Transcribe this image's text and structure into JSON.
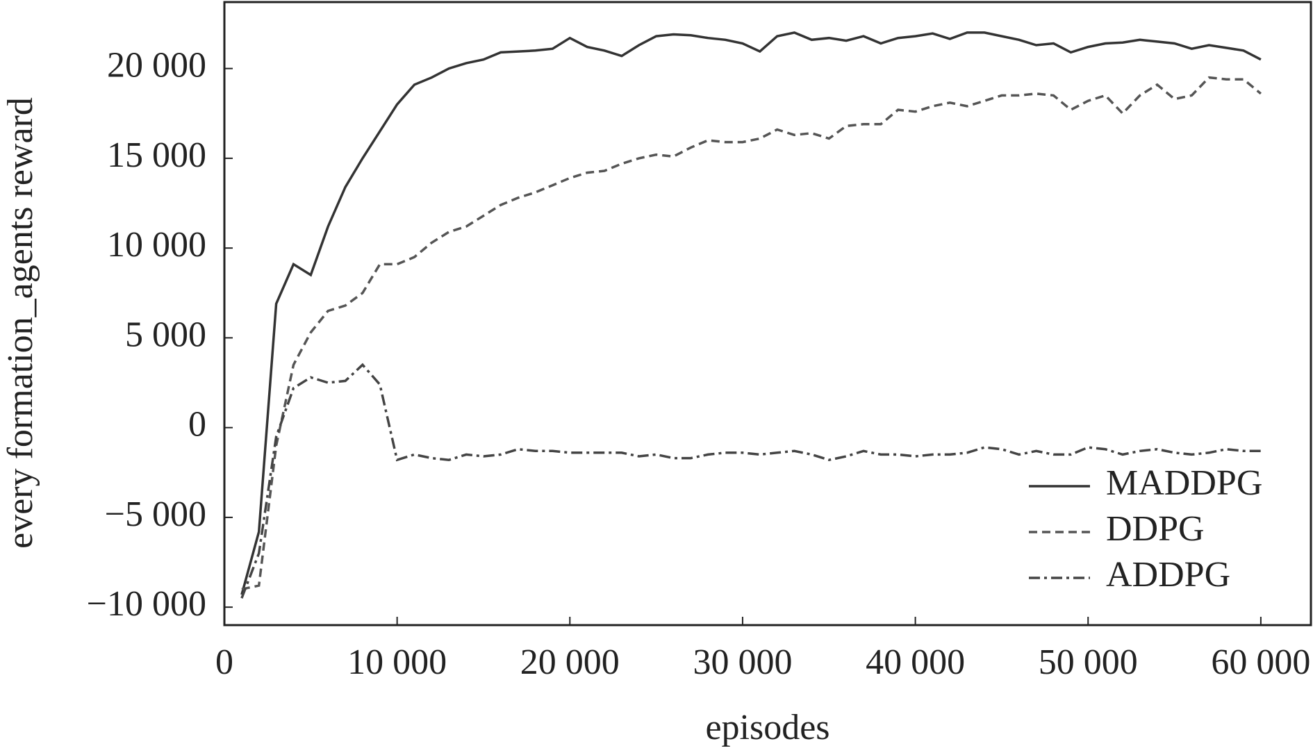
{
  "chart_data": {
    "type": "line",
    "x_label": "episodes",
    "y_label": "every formation_agents reward",
    "x": [
      1000,
      2000,
      3000,
      4000,
      5000,
      6000,
      7000,
      8000,
      9000,
      10000,
      11000,
      12000,
      13000,
      14000,
      15000,
      16000,
      17000,
      18000,
      19000,
      20000,
      21000,
      22000,
      23000,
      24000,
      25000,
      26000,
      27000,
      28000,
      29000,
      30000,
      31000,
      32000,
      33000,
      34000,
      35000,
      36000,
      37000,
      38000,
      39000,
      40000,
      41000,
      42000,
      43000,
      44000,
      45000,
      46000,
      47000,
      48000,
      49000,
      50000,
      51000,
      52000,
      53000,
      54000,
      55000,
      56000,
      57000,
      58000,
      59000,
      60000
    ],
    "series": [
      {
        "name": "MADDPG",
        "color": "#333333",
        "linestyle": "solid",
        "values": [
          -9300,
          -5800,
          6900,
          9100,
          8500,
          11200,
          13400,
          15000,
          16500,
          18000,
          19100,
          19500,
          20000,
          20300,
          20500,
          20900,
          20950,
          21000,
          21100,
          21700,
          21200,
          21000,
          20700,
          21300,
          21800,
          21900,
          21850,
          21700,
          21600,
          21400,
          20950,
          21800,
          22000,
          21600,
          21700,
          21550,
          21800,
          21400,
          21700,
          21800,
          21950,
          21650,
          22000,
          22000,
          21800,
          21600,
          21300,
          21400,
          20900,
          21200,
          21400,
          21450,
          21600,
          21500,
          21400,
          21100,
          21300,
          21150,
          21000,
          20500
        ]
      },
      {
        "name": "DDPG",
        "color": "#555555",
        "linestyle": "dashed",
        "values": [
          -9000,
          -8800,
          -1000,
          3500,
          5300,
          6500,
          6800,
          7500,
          9100,
          9100,
          9500,
          10300,
          10900,
          11200,
          11800,
          12400,
          12800,
          13100,
          13500,
          13900,
          14200,
          14300,
          14700,
          15000,
          15200,
          15100,
          15600,
          16000,
          15900,
          15900,
          16100,
          16600,
          16300,
          16400,
          16100,
          16800,
          16900,
          16900,
          17700,
          17600,
          17900,
          18100,
          17900,
          18200,
          18500,
          18500,
          18600,
          18500,
          17700,
          18200,
          18500,
          17500,
          18500,
          19100,
          18300,
          18500,
          19500,
          19400,
          19400,
          18600
        ]
      },
      {
        "name": "ADDPG",
        "color": "#444444",
        "linestyle": "dashdot",
        "values": [
          -9500,
          -7000,
          -500,
          2200,
          2800,
          2500,
          2600,
          3500,
          2400,
          -1800,
          -1500,
          -1700,
          -1800,
          -1500,
          -1600,
          -1500,
          -1200,
          -1300,
          -1300,
          -1400,
          -1400,
          -1400,
          -1400,
          -1600,
          -1500,
          -1700,
          -1700,
          -1500,
          -1400,
          -1400,
          -1500,
          -1400,
          -1300,
          -1500,
          -1800,
          -1600,
          -1300,
          -1500,
          -1500,
          -1600,
          -1500,
          -1500,
          -1400,
          -1100,
          -1200,
          -1500,
          -1300,
          -1500,
          -1500,
          -1100,
          -1200,
          -1500,
          -1300,
          -1200,
          -1400,
          -1500,
          -1400,
          -1200,
          -1300,
          -1300
        ]
      }
    ],
    "xlim": [
      0,
      62900
    ],
    "ylim": [
      -11000,
      23700
    ],
    "xticks": [
      0,
      {
        "value": 10000,
        "label": "10 000"
      },
      {
        "value": 20000,
        "label": "20 000"
      },
      {
        "value": 30000,
        "label": "30 000"
      },
      {
        "value": 40000,
        "label": "40 000"
      },
      {
        "value": 50000,
        "label": "50 000"
      },
      {
        "value": 60000,
        "label": "60 000"
      }
    ],
    "yticks": [
      {
        "value": -10000,
        "label": "−10 000"
      },
      {
        "value": -5000,
        "label": "−5 000"
      },
      0,
      {
        "value": 5000,
        "label": "5 000"
      },
      {
        "value": 10000,
        "label": "10 000"
      },
      {
        "value": 15000,
        "label": "15 000"
      },
      {
        "value": 20000,
        "label": "20 000"
      }
    ],
    "legend": "lower right",
    "grid": false
  }
}
